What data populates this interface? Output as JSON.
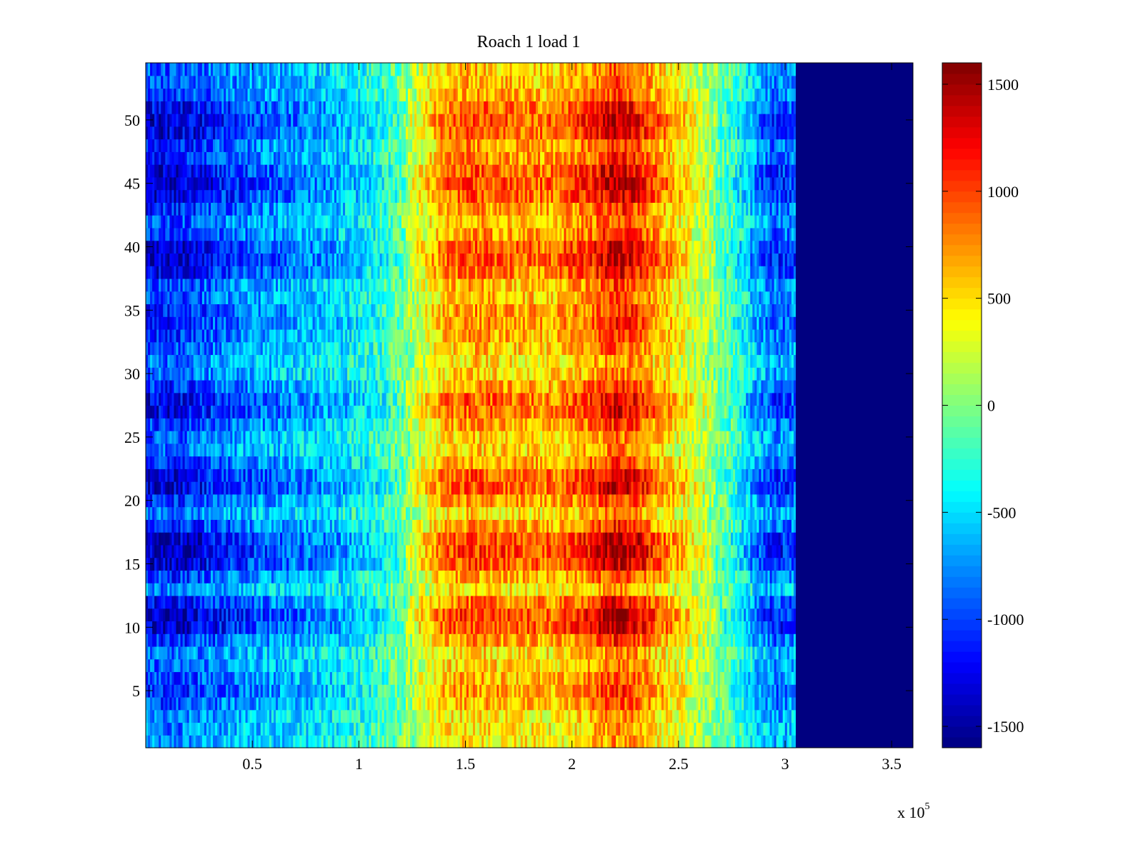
{
  "chart_data": {
    "type": "heatmap",
    "title": "Roach 1 load 1",
    "xlabel": "",
    "ylabel": "",
    "x_range": [
      0,
      360000
    ],
    "y_range": [
      0.5,
      54.5
    ],
    "x_ticks": [
      50000,
      100000,
      150000,
      200000,
      250000,
      300000,
      350000
    ],
    "x_tick_labels": [
      "0.5",
      "1",
      "1.5",
      "2",
      "2.5",
      "3",
      "3.5"
    ],
    "x_scale_label": {
      "base": "x 10",
      "exponent": "5"
    },
    "y_ticks": [
      5,
      10,
      15,
      20,
      25,
      30,
      35,
      40,
      45,
      50
    ],
    "y_tick_labels": [
      "5",
      "10",
      "15",
      "20",
      "25",
      "30",
      "35",
      "40",
      "45",
      "50"
    ],
    "rows": 54,
    "data_x_end": 305000,
    "fill_value": -1600,
    "colormap": "jet",
    "color_range": [
      -1600,
      1600
    ],
    "colorbar_ticks": [
      1500,
      1000,
      500,
      0,
      -500,
      -1000,
      -1500
    ],
    "colorbar_tick_labels": [
      "1500",
      "1000",
      "500",
      "0",
      "-500",
      "-1000",
      "-1500"
    ],
    "column_profile": {
      "x": [
        0,
        10000,
        20000,
        30000,
        50000,
        70000,
        90000,
        110000,
        120000,
        130000,
        140000,
        150000,
        170000,
        190000,
        200000,
        210000,
        220000,
        230000,
        240000,
        260000,
        275000,
        285000,
        295000,
        305000
      ],
      "value": [
        -900,
        -950,
        -900,
        -800,
        -650,
        -550,
        -450,
        -250,
        -50,
        250,
        500,
        600,
        550,
        500,
        600,
        700,
        900,
        800,
        550,
        150,
        -150,
        -500,
        -750,
        -650
      ]
    },
    "row_profile": {
      "rows": [
        1,
        2,
        3,
        4,
        5,
        6,
        7,
        8,
        9,
        10,
        11,
        12,
        13,
        14,
        15,
        16,
        17,
        18,
        19,
        20,
        21,
        22,
        23,
        24,
        25,
        26,
        27,
        28,
        29,
        30,
        31,
        32,
        33,
        34,
        35,
        36,
        37,
        38,
        39,
        40,
        41,
        42,
        43,
        44,
        45,
        46,
        47,
        48,
        49,
        50,
        51,
        52,
        53,
        54
      ],
      "offset": [
        -100,
        -80,
        -60,
        50,
        120,
        60,
        -20,
        -50,
        120,
        340,
        360,
        200,
        -80,
        80,
        320,
        380,
        340,
        120,
        -60,
        120,
        300,
        280,
        100,
        -40,
        -20,
        100,
        240,
        260,
        100,
        -40,
        -60,
        20,
        80,
        140,
        120,
        40,
        60,
        240,
        320,
        300,
        120,
        40,
        120,
        280,
        340,
        300,
        140,
        120,
        280,
        320,
        240,
        80,
        40,
        20
      ]
    }
  }
}
